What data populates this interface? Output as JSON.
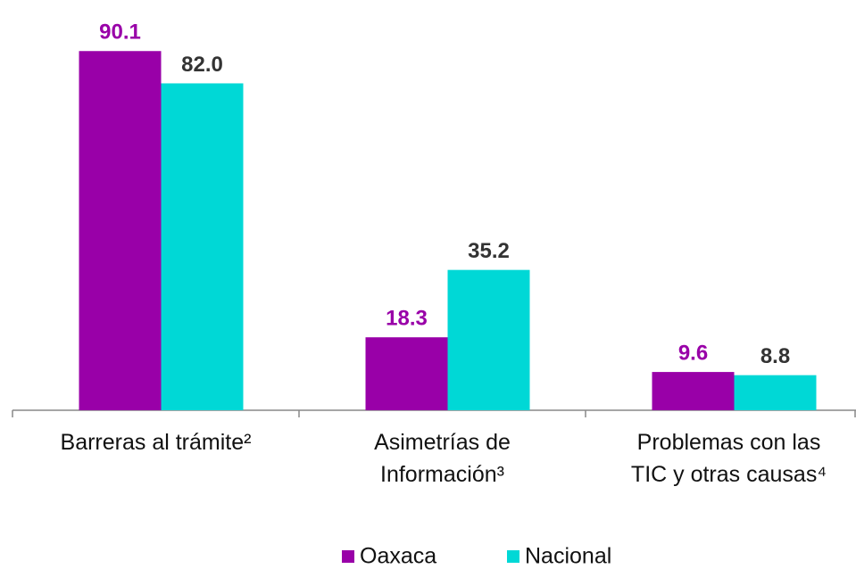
{
  "chart_data": {
    "type": "bar",
    "categories": [
      "Barreras al trámite²",
      "Asimetrías de\nInformación³",
      "Problemas con las\nTIC y otras causas⁴"
    ],
    "series": [
      {
        "name": "Oaxaca",
        "color": "#9900a8",
        "values": [
          90.1,
          18.3,
          9.6
        ]
      },
      {
        "name": "Nacional",
        "color": "#00d8d6",
        "values": [
          82.0,
          35.2,
          8.8
        ],
        "value_labels": [
          "82.0",
          "35.2",
          "8.8"
        ]
      }
    ],
    "ylim": [
      0,
      100
    ]
  }
}
